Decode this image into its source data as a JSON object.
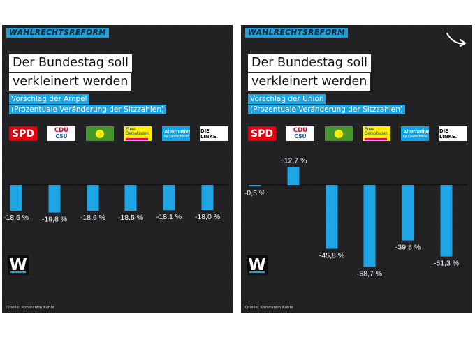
{
  "panels": [
    {
      "tag": "WAHLRECHTSREFORM",
      "title_lines": [
        "Der Bundestag soll",
        "verkleinert werden"
      ],
      "subtitle_lines": [
        "Vorschlag der Ampel",
        "(Prozentuale Veränderung der Sitzzahlen)"
      ],
      "source": "Quelle: Konstantin Kuhle"
    },
    {
      "tag": "WAHLRECHTSREFORM",
      "title_lines": [
        "Der Bundestag soll",
        "verkleinert werden"
      ],
      "subtitle_lines": [
        "Vorschlag der Union",
        "(Prozentuale Veränderung der Sitzzahlen)"
      ],
      "source": "Quelle: Konstantin Kuhle"
    }
  ],
  "party_logos": {
    "spd": "SPD",
    "cdu": "CDU",
    "csu": "CSU",
    "gruene": "BÜNDNIS 90 DIE GRÜNEN",
    "fdp": "Freie Demokraten",
    "fdp_sub": "FDP",
    "afd": "Alternative",
    "afd_sub": "für Deutschland",
    "linke": "DIE LINKE."
  },
  "brand_logo": "W",
  "colors": {
    "bar": "#1ea5e6",
    "background": "#1f1f21",
    "tag": "#1e9fd8",
    "spd": "#e3000f",
    "gruene": "#46962b",
    "fdp": "#ffed00",
    "afd": "#0fa5e8"
  },
  "icons": {
    "arrow": "curved-arrow-icon"
  },
  "chart_data": [
    {
      "type": "bar",
      "categories": [
        "SPD",
        "CDU/CSU",
        "Bündnis 90/Die Grünen",
        "FDP",
        "AfD",
        "Die Linke"
      ],
      "values": [
        -18.5,
        -19.8,
        -18.6,
        -18.5,
        -18.1,
        -18.0
      ],
      "labels": [
        "-18,5 %",
        "-19,8 %",
        "-18,6 %",
        "-18,5 %",
        "-18,1 %",
        "-18,0 %"
      ],
      "title": "Vorschlag der Ampel",
      "ylim": [
        -60,
        15
      ]
    },
    {
      "type": "bar",
      "categories": [
        "SPD",
        "CDU/CSU",
        "Bündnis 90/Die Grünen",
        "FDP",
        "AfD",
        "Die Linke"
      ],
      "values": [
        -0.5,
        12.7,
        -45.8,
        -58.7,
        -39.8,
        -51.3
      ],
      "labels": [
        "-0,5 %",
        "+12,7 %",
        "-45,8 %",
        "-58,7 %",
        "-39,8 %",
        "-51,3 %"
      ],
      "title": "Vorschlag der Union",
      "ylim": [
        -60,
        15
      ]
    }
  ]
}
